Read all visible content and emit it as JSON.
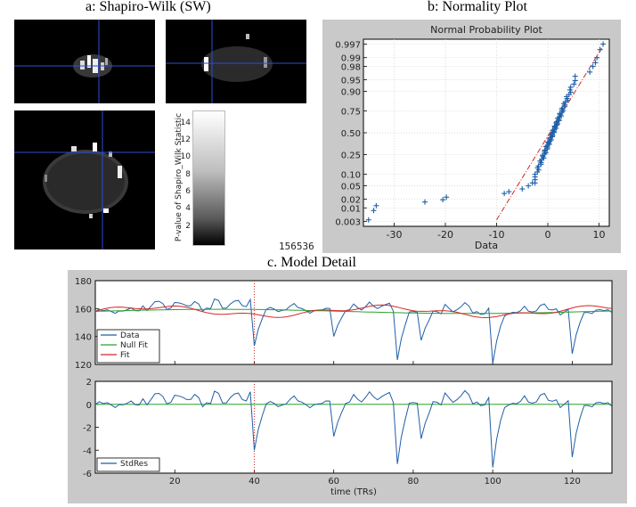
{
  "titles": {
    "a": "a: Shapiro-Wilk (SW)",
    "b": "b: Normality Plot",
    "c": "c. Model Detail"
  },
  "colorbar": {
    "label": "P-value of Shapiro_Wilk Statistic",
    "ticks": [
      "2",
      "4",
      "6",
      "8",
      "10",
      "12",
      "14"
    ]
  },
  "image_id_text": "156536",
  "chart_data": [
    {
      "type": "scatter",
      "title": "Normal Probability Plot",
      "xlabel": "Data",
      "ylabel": "",
      "xlim": [
        -36,
        12
      ],
      "x_ticks": [
        -30,
        -20,
        -10,
        0,
        10
      ],
      "y_tick_labels": [
        "0.003",
        "0.01",
        "0.02",
        "0.05",
        "0.10",
        "0.25",
        "0.50",
        "0.75",
        "0.90",
        "0.95",
        "0.98",
        "0.99",
        "0.997"
      ],
      "y_scale": "normal-probability",
      "grid": true,
      "series": [
        {
          "color": "#1f5fa8",
          "marker": "+",
          "outliers": [
            [
              -35,
              0.0035
            ],
            [
              -34,
              0.008
            ],
            [
              -33.5,
              0.012
            ],
            [
              -24,
              0.016
            ],
            [
              -20.5,
              0.019
            ],
            [
              -19.8,
              0.023
            ],
            [
              -8.5,
              0.03
            ],
            [
              -7.6,
              0.034
            ],
            [
              -5,
              0.041
            ],
            [
              -3.8,
              0.05
            ],
            [
              -3,
              0.06
            ]
          ],
          "bulk_range": [
            -2.5,
            7.5
          ],
          "upper": [
            [
              8.2,
              0.97
            ],
            [
              8.8,
              0.98
            ],
            [
              9.3,
              0.985
            ],
            [
              9.6,
              0.99
            ],
            [
              10.2,
              0.995
            ],
            [
              10.8,
              0.997
            ]
          ]
        }
      ],
      "reference_line": {
        "style": "dash-dot",
        "color": "#d62728",
        "from": [
          -10,
          0.0035
        ],
        "to": [
          11,
          0.997
        ]
      }
    },
    {
      "type": "line",
      "title": "",
      "xlabel": "",
      "ylabel": "",
      "xlim": [
        0,
        130
      ],
      "ylim": [
        120,
        180
      ],
      "y_ticks": [
        120,
        140,
        160,
        180
      ],
      "x_ticks": [
        20,
        40,
        60,
        80,
        100,
        120
      ],
      "vertical_marker": {
        "x": 40,
        "style": "dotted",
        "color": "#d62728"
      },
      "legend": {
        "placement": "bottom-left",
        "entries": [
          "Data",
          "Null Fit",
          "Fit"
        ]
      },
      "series": [
        {
          "name": "Data",
          "color": "#1f5fa8"
        },
        {
          "name": "Null Fit",
          "color": "#2ca02c"
        },
        {
          "name": "Fit",
          "color": "#d62728"
        }
      ]
    },
    {
      "type": "line",
      "title": "",
      "xlabel": "time (TRs)",
      "ylabel": "",
      "xlim": [
        0,
        130
      ],
      "ylim": [
        -6,
        2
      ],
      "y_ticks": [
        -6,
        -4,
        -2,
        0,
        2
      ],
      "x_ticks": [
        20,
        40,
        60,
        80,
        100,
        120
      ],
      "vertical_marker": {
        "x": 40,
        "style": "dotted",
        "color": "#d62728"
      },
      "zero_line": {
        "y": 0,
        "color": "#2ca02c"
      },
      "legend": {
        "placement": "bottom-left",
        "entries": [
          "StdRes"
        ]
      },
      "series": [
        {
          "name": "StdRes",
          "color": "#1f5fa8"
        }
      ]
    }
  ],
  "timeseries": {
    "dips": [
      [
        40,
        -4.0
      ],
      [
        60,
        -2.8
      ],
      [
        76,
        -5.2
      ],
      [
        82,
        -3.0
      ],
      [
        100,
        -5.5
      ],
      [
        120,
        -4.6
      ]
    ],
    "pos_blocks": [
      [
        12,
        26,
        0.9
      ],
      [
        30,
        39,
        1.0
      ],
      [
        48,
        52,
        0.5
      ],
      [
        65,
        74,
        1.1
      ],
      [
        88,
        96,
        1.0
      ],
      [
        108,
        116,
        0.8
      ]
    ]
  }
}
